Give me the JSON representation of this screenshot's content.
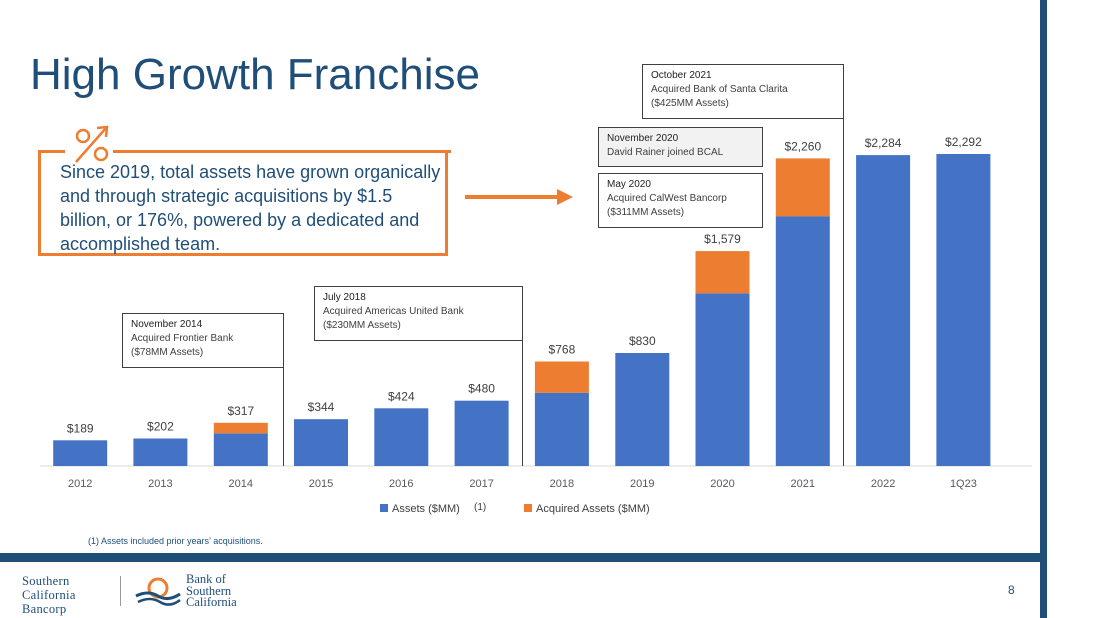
{
  "slide": {
    "title": "High Growth Franchise",
    "callout": "Since 2019, total assets have grown organically and through strategic acquisitions by $1.5 billion, or 176%, powered by a dedicated and accomplished team.",
    "footnote": "(1)  Assets included prior years’ acquisitions.",
    "page_number": "8",
    "percent_icon": "percent-icon",
    "arrow_icon": "right-arrow-icon"
  },
  "annotations": {
    "nov2014": {
      "head": "November 2014",
      "line1": "Acquired Frontier Bank",
      "line2": "($78MM Assets)"
    },
    "jul2018": {
      "head": "July 2018",
      "line1": "Acquired Americas United Bank",
      "line2": "($230MM Assets)"
    },
    "nov2020": {
      "head": "November 2020",
      "line1": "David Rainer joined BCAL"
    },
    "may2020": {
      "head": "May 2020",
      "line1": "Acquired CalWest Bancorp",
      "line2": "($311MM Assets)"
    },
    "oct2021": {
      "head": "October 2021",
      "line1": "Acquired Bank of Santa Clarita",
      "line2": "($425MM Assets)"
    }
  },
  "logos": {
    "company": [
      "Southern",
      "California",
      "Bancorp"
    ],
    "bank": [
      "Bank of",
      "Southern",
      "California"
    ]
  },
  "colors": {
    "assets": "#4472c4",
    "acquired": "#ed7d31",
    "brand": "#1f4e79"
  },
  "chart_data": {
    "type": "bar",
    "stacked": true,
    "categories": [
      "2012",
      "2013",
      "2014",
      "2015",
      "2016",
      "2017",
      "2018",
      "2019",
      "2020",
      "2021",
      "2022",
      "1Q23"
    ],
    "series": [
      {
        "name": "Assets ($MM)",
        "values": [
          189,
          202,
          239,
          344,
          424,
          480,
          538,
          830,
          1268,
          1835,
          2284,
          2292
        ]
      },
      {
        "name": "Acquired Assets ($MM)",
        "values": [
          0,
          0,
          78,
          0,
          0,
          0,
          230,
          0,
          311,
          425,
          0,
          0
        ]
      }
    ],
    "data_labels": [
      "$189",
      "$202",
      "$317",
      "$344",
      "$424",
      "$480",
      "$768",
      "$830",
      "$1,579",
      "$2,260",
      "$2,284",
      "$2,292"
    ],
    "legend_note": "(1)",
    "legend_position": "bottom",
    "ylim": [
      0,
      2400
    ],
    "grid": false
  }
}
